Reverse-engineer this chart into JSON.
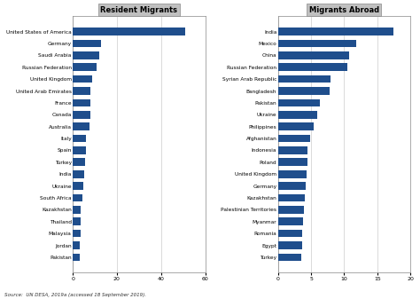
{
  "left_title": "Resident Migrants",
  "left_countries": [
    "United States of America",
    "Germany",
    "Saudi Arabia",
    "Russian Federation",
    "United Kingdom",
    "United Arab Emirates",
    "France",
    "Canada",
    "Australia",
    "Italy",
    "Spain",
    "Turkey",
    "India",
    "Ukraine",
    "South Africa",
    "Kazakhstan",
    "Thailand",
    "Malaysia",
    "Jordan",
    "Pakistan"
  ],
  "left_values": [
    51,
    13,
    12,
    11,
    9,
    8,
    7.9,
    7.8,
    7.5,
    6,
    5.9,
    5.6,
    5.2,
    4.9,
    4.2,
    3.7,
    3.6,
    3.4,
    3.2,
    3.0
  ],
  "right_title": "Migrants Abroad",
  "right_countries": [
    "India",
    "Mexico",
    "China",
    "Russian Federation",
    "Syrian Arab Republic",
    "Bangladesh",
    "Pakistan",
    "Ukraine",
    "Philippines",
    "Afghanistan",
    "Indonesia",
    "Poland",
    "United Kingdom",
    "Germany",
    "Kazakhstan",
    "Palestinian Territories",
    "Myanmar",
    "Romania",
    "Egypt",
    "Turkey"
  ],
  "right_values": [
    17.5,
    11.8,
    10.7,
    10.5,
    8.0,
    7.8,
    6.3,
    5.9,
    5.4,
    4.8,
    4.5,
    4.4,
    4.3,
    4.2,
    4.1,
    3.9,
    3.8,
    3.7,
    3.6,
    3.5
  ],
  "bar_color": "#1F4E8C",
  "title_bg_color": "#C0C0C0",
  "left_xlim": [
    0,
    60
  ],
  "right_xlim": [
    0,
    20
  ],
  "left_xticks": [
    0,
    20,
    40,
    60
  ],
  "right_xticks": [
    0,
    5,
    10,
    15,
    20
  ],
  "source_text": "Source:  UN DESA, 2019a (accessed 18 September 2019).",
  "background_color": "#FFFFFF",
  "grid_color": "#CCCCCC",
  "plot_bg_color": "#FFFFFF"
}
